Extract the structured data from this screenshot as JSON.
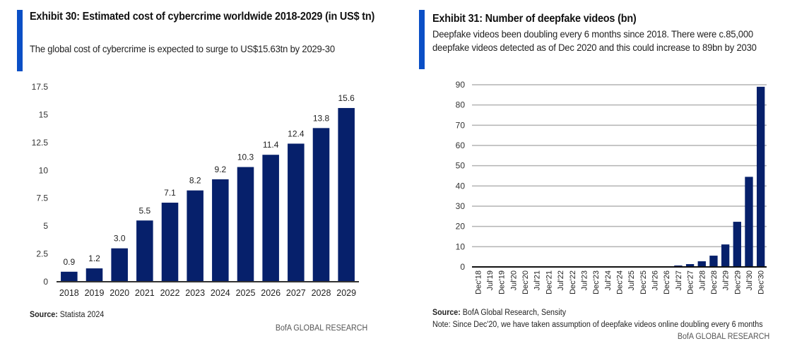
{
  "colors": {
    "accent": "#0a4fc6",
    "bar": "#06206b",
    "gridline": "#b3b3b3",
    "axis": "#333333"
  },
  "left_panel": {
    "title": "Exhibit 30: Estimated cost of cybercrime worldwide 2018-2029 (in US$ tn)",
    "subtitle": "The global cost of cybercrime is expected to surge to US$15.63tn by 2029-30",
    "source_label": "Source:",
    "source_text": " Statista 2024",
    "brand": "BofA GLOBAL RESEARCH"
  },
  "right_panel": {
    "title": "Exhibit 31: Number of deepfake videos (bn)",
    "subtitle": "Deepfake videos been doubling every 6 months since 2018. There were c.85,000 deepfake videos detected as of Dec 2020 and this could increase to 89bn by 2030",
    "source_label": "Source:",
    "source_text": " BofA Global Research, Sensity",
    "note": "Note: Since Dec'20, we have taken assumption of deepfake videos online doubling every 6 months",
    "brand": "BofA GLOBAL RESEARCH"
  },
  "chart_data": [
    {
      "type": "bar",
      "title": "Exhibit 30: Estimated cost of cybercrime worldwide 2018-2029 (in US$ tn)",
      "xlabel": "",
      "ylabel": "US$ tn",
      "categories": [
        "2018",
        "2019",
        "2020",
        "2021",
        "2022",
        "2023",
        "2024",
        "2025",
        "2026",
        "2027",
        "2028",
        "2029"
      ],
      "values": [
        0.9,
        1.2,
        3.0,
        5.5,
        7.1,
        8.2,
        9.2,
        10.3,
        11.4,
        12.4,
        13.8,
        15.6
      ],
      "data_labels": [
        "0.9",
        "1.2",
        "3.0",
        "5.5",
        "7.1",
        "8.2",
        "9.2",
        "10.3",
        "11.4",
        "12.4",
        "13.8",
        "15.6"
      ],
      "ylim": [
        0,
        17.5
      ],
      "yticks": [
        0,
        2.5,
        5,
        7.5,
        10,
        12.5,
        15,
        17.5
      ],
      "ytick_labels": [
        "0",
        "2.5",
        "5",
        "7.5",
        "10",
        "12.5",
        "15",
        "17.5"
      ],
      "grid": false,
      "legend": "none"
    },
    {
      "type": "bar",
      "title": "Exhibit 31: Number of deepfake videos (bn)",
      "xlabel": "",
      "ylabel": "bn",
      "categories": [
        "Dec'18",
        "Jul'19",
        "Dec'19",
        "Jul'20",
        "Dec'20",
        "Jul'21",
        "Dec'21",
        "Jul'22",
        "Dec'22",
        "Jul'23",
        "Dec'23",
        "Jul'24",
        "Dec'24",
        "Jul'25",
        "Dec'25",
        "Jul'26",
        "Dec'26",
        "Jul'27",
        "Dec'27",
        "Jul'28",
        "Dec'28",
        "Jul'29",
        "Dec'29",
        "Jul'30",
        "Dec'30"
      ],
      "values": [
        1.4e-05,
        2.1e-05,
        4.3e-05,
        4.3e-05,
        8.5e-05,
        0.00017,
        0.00034,
        0.00068,
        0.0014,
        0.0027,
        0.0054,
        0.011,
        0.022,
        0.043,
        0.087,
        0.17,
        0.35,
        0.7,
        1.39,
        2.78,
        5.56,
        11.1,
        22.3,
        44.5,
        89.0
      ],
      "ylim": [
        0,
        90
      ],
      "yticks": [
        0,
        10,
        20,
        30,
        40,
        50,
        60,
        70,
        80,
        90
      ],
      "ytick_labels": [
        "0",
        "10",
        "20",
        "30",
        "40",
        "50",
        "60",
        "70",
        "80",
        "90"
      ],
      "grid": true,
      "legend": "none"
    }
  ]
}
